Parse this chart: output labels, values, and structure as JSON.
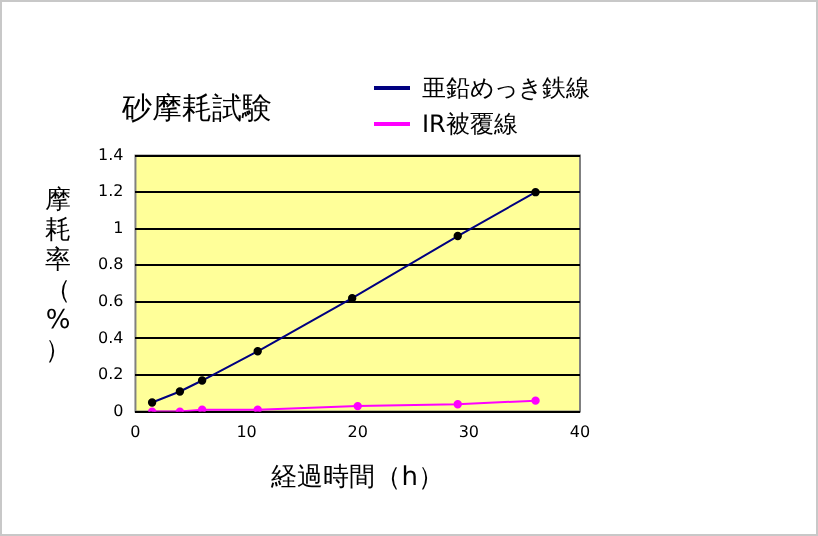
{
  "chart_data": {
    "type": "line",
    "title": "砂摩耗試験",
    "xlabel": "経過時間（h）",
    "ylabel": "摩耗率（%）",
    "series": [
      {
        "name": "亜鉛めっき鉄線",
        "color": "#000080",
        "x": [
          1.5,
          4,
          6,
          11,
          19.5,
          29,
          36
        ],
        "values": [
          0.05,
          0.11,
          0.17,
          0.33,
          0.62,
          0.96,
          1.2
        ]
      },
      {
        "name": "IR被覆線",
        "color": "#ff00ff",
        "x": [
          1.5,
          4,
          6,
          11,
          20,
          29,
          36
        ],
        "values": [
          0,
          0,
          0.01,
          0.01,
          0.03,
          0.04,
          0.06
        ]
      }
    ],
    "xlim": [
      0,
      40
    ],
    "xticks": [
      0,
      10,
      20,
      30,
      40
    ],
    "ylim": [
      0,
      1.4
    ],
    "yticks": [
      0,
      0.2,
      0.4,
      0.6,
      0.8,
      1,
      1.2,
      1.4
    ],
    "grid": "y",
    "legend": "top right",
    "marker": "circle",
    "line_style": "solid"
  }
}
